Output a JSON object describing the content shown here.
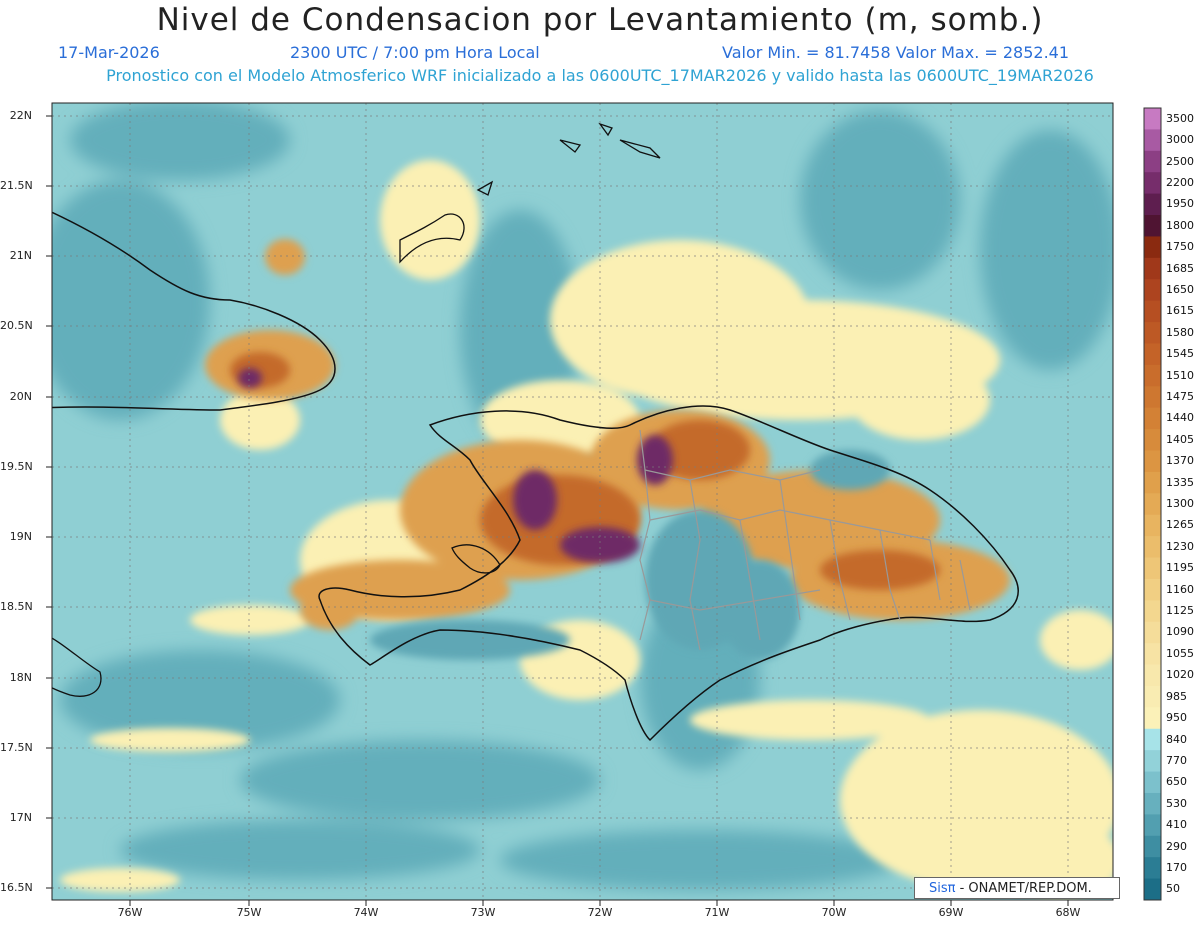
{
  "header": {
    "title": "Nivel de Condensacion por Levantamiento (m, somb.)",
    "date": "17-Mar-2026",
    "time": "2300 UTC / 7:00 pm Hora Local",
    "minmax": "Valor Min. = 81.7458   Valor Max. = 2852.41",
    "forecast": "Pronostico con el Modelo Atmosferico WRF inicializado a las 0600UTC_17MAR2026 y valido hasta las  0600UTC_19MAR2026"
  },
  "lat_labels": [
    "22N",
    "21.5N",
    "21N",
    "20.5N",
    "20N",
    "19.5N",
    "19N",
    "18.5N",
    "18N",
    "17.5N",
    "17N",
    "16.5N"
  ],
  "lon_labels": [
    "76W",
    "75W",
    "74W",
    "73W",
    "72W",
    "71W",
    "70W",
    "69W",
    "68W"
  ],
  "colorbar": {
    "labels": [
      "3500",
      "3000",
      "2500",
      "2200",
      "1950",
      "1800",
      "1750",
      "1685",
      "1650",
      "1615",
      "1580",
      "1545",
      "1510",
      "1475",
      "1440",
      "1405",
      "1370",
      "1335",
      "1300",
      "1265",
      "1230",
      "1195",
      "1160",
      "1125",
      "1090",
      "1055",
      "1020",
      "985",
      "950",
      "840",
      "770",
      "650",
      "530",
      "410",
      "290",
      "170",
      "50"
    ],
    "colors": [
      "#c77ac2",
      "#a85aa3",
      "#8c3f84",
      "#762d6b",
      "#5e1e4f",
      "#4f1432",
      "#8a2a10",
      "#a0381a",
      "#ad441f",
      "#b64f22",
      "#bd5925",
      "#c46328",
      "#c96d2c",
      "#ce7730",
      "#d38135",
      "#d78b3b",
      "#dc9542",
      "#e0a04b",
      "#e4aa55",
      "#e8b460",
      "#ebbd6b",
      "#eec677",
      "#f1cf83",
      "#f3d78f",
      "#f5dd9a",
      "#f7e3a4",
      "#f8e8ac",
      "#f9ecb2",
      "#fbf1b8",
      "#a7e3e8",
      "#92d2d9",
      "#7cc1cc",
      "#67b0be",
      "#529fb0",
      "#3e8ea2",
      "#2b7d94",
      "#1c6e87"
    ]
  },
  "credit": {
    "sis": "Sisπ",
    "rest": " - ONAMET/REP.DOM."
  },
  "colors": {
    "sea": "#8fcfd3",
    "teal": "#5ca9b6",
    "light_yellow": "#fbf0b4",
    "orange": "#d88a3c",
    "purple": "#6b2d63",
    "border": "#111111",
    "province": "#9a9a9a"
  }
}
